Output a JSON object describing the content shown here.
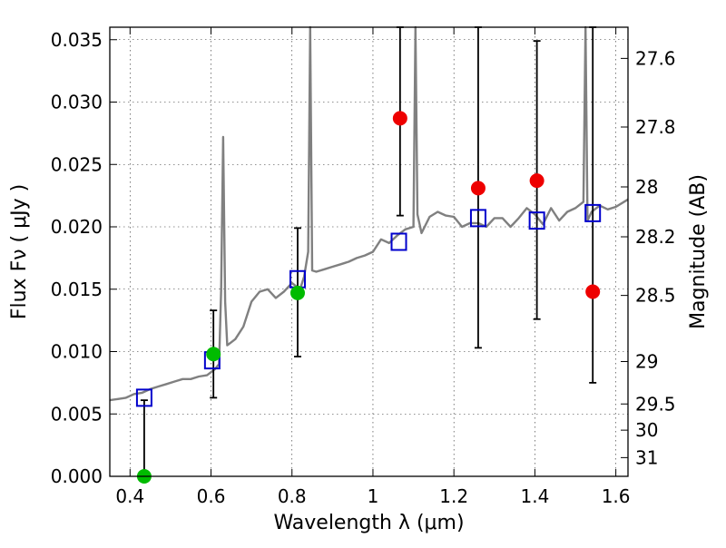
{
  "chart_data": {
    "type": "scatter",
    "xlabel": "Wavelength  λ (μm)",
    "ylabel": "Flux  Fν  ( μJy )",
    "y2label": "Magnitude (AB)",
    "xlim": [
      0.35,
      1.63
    ],
    "ylim": [
      0.0,
      0.036
    ],
    "grid": true,
    "x_ticks": [
      0.4,
      0.6,
      0.8,
      1.0,
      1.2,
      1.4,
      1.6
    ],
    "x_tick_labels": [
      "0.4",
      "0.6",
      "0.8",
      "1",
      "1.2",
      "1.4",
      "1.6"
    ],
    "y_ticks": [
      0.0,
      0.005,
      0.01,
      0.015,
      0.02,
      0.025,
      0.03,
      0.035
    ],
    "y_tick_labels": [
      "0.000",
      "0.005",
      "0.010",
      "0.015",
      "0.020",
      "0.025",
      "0.030",
      "0.035"
    ],
    "mag_ticks": [
      {
        "label": "27.6",
        "flux": 0.0335
      },
      {
        "label": "27.8",
        "flux": 0.028
      },
      {
        "label": "28",
        "flux": 0.0232
      },
      {
        "label": "28.2",
        "flux": 0.0192
      },
      {
        "label": "28.5",
        "flux": 0.0145
      },
      {
        "label": "29",
        "flux": 0.0092
      },
      {
        "label": "29.5",
        "flux": 0.0058
      },
      {
        "label": "30",
        "flux": 0.0037
      },
      {
        "label": "31",
        "flux": 0.0015
      }
    ],
    "series": [
      {
        "kind": "line",
        "color": "#808080",
        "x": [
          0.35,
          0.37,
          0.39,
          0.41,
          0.43,
          0.45,
          0.47,
          0.49,
          0.51,
          0.53,
          0.55,
          0.57,
          0.59,
          0.61,
          0.62,
          0.625,
          0.63,
          0.635,
          0.64,
          0.66,
          0.68,
          0.7,
          0.72,
          0.74,
          0.76,
          0.78,
          0.8,
          0.82,
          0.83,
          0.84,
          0.845,
          0.85,
          0.86,
          0.88,
          0.9,
          0.92,
          0.94,
          0.96,
          0.98,
          1.0,
          1.02,
          1.04,
          1.06,
          1.08,
          1.1,
          1.105,
          1.11,
          1.12,
          1.14,
          1.16,
          1.18,
          1.2,
          1.22,
          1.24,
          1.26,
          1.28,
          1.3,
          1.32,
          1.34,
          1.36,
          1.38,
          1.4,
          1.42,
          1.44,
          1.46,
          1.48,
          1.5,
          1.52,
          1.525,
          1.53,
          1.54,
          1.56,
          1.58,
          1.6,
          1.63
        ],
        "y": [
          0.0061,
          0.0062,
          0.0063,
          0.0066,
          0.0067,
          0.007,
          0.0072,
          0.0074,
          0.0076,
          0.0078,
          0.0078,
          0.008,
          0.0081,
          0.0086,
          0.009,
          0.015,
          0.0272,
          0.014,
          0.0105,
          0.011,
          0.012,
          0.014,
          0.0148,
          0.015,
          0.0143,
          0.0148,
          0.0155,
          0.015,
          0.016,
          0.018,
          0.037,
          0.0165,
          0.0164,
          0.0166,
          0.0168,
          0.017,
          0.0172,
          0.0175,
          0.0177,
          0.018,
          0.019,
          0.0187,
          0.0193,
          0.0198,
          0.02,
          0.037,
          0.021,
          0.0195,
          0.0208,
          0.0212,
          0.0209,
          0.0208,
          0.02,
          0.0203,
          0.0203,
          0.02,
          0.0207,
          0.0207,
          0.02,
          0.0207,
          0.0215,
          0.021,
          0.0202,
          0.0215,
          0.0205,
          0.0212,
          0.0215,
          0.022,
          0.037,
          0.0205,
          0.0212,
          0.0217,
          0.0214,
          0.0216,
          0.0222
        ]
      },
      {
        "kind": "open-square",
        "color": "#0000cc",
        "x": [
          0.435,
          0.603,
          0.814,
          1.064,
          1.26,
          1.405,
          1.543
        ],
        "y": [
          0.0063,
          0.0093,
          0.0158,
          0.0188,
          0.0207,
          0.0205,
          0.0211
        ]
      },
      {
        "kind": "filled-circle",
        "color": "#00bb00",
        "x": [
          0.435,
          0.606,
          0.814
        ],
        "y": [
          0.0,
          0.0098,
          0.0147
        ]
      },
      {
        "kind": "filled-circle",
        "color": "#ee0000",
        "x": [
          1.067,
          1.26,
          1.405,
          1.543
        ],
        "y": [
          0.0287,
          0.0231,
          0.0237,
          0.0148
        ]
      },
      {
        "kind": "errorbar",
        "color": "#000000",
        "x": [
          0.435,
          0.606,
          0.814,
          1.067,
          1.26,
          1.405,
          1.543
        ],
        "low": [
          0.0,
          0.0063,
          0.0096,
          0.0209,
          0.0103,
          0.0126,
          0.0075
        ],
        "high": [
          0.0061,
          0.0133,
          0.0199,
          0.036,
          0.036,
          0.0349,
          0.036
        ]
      }
    ]
  }
}
